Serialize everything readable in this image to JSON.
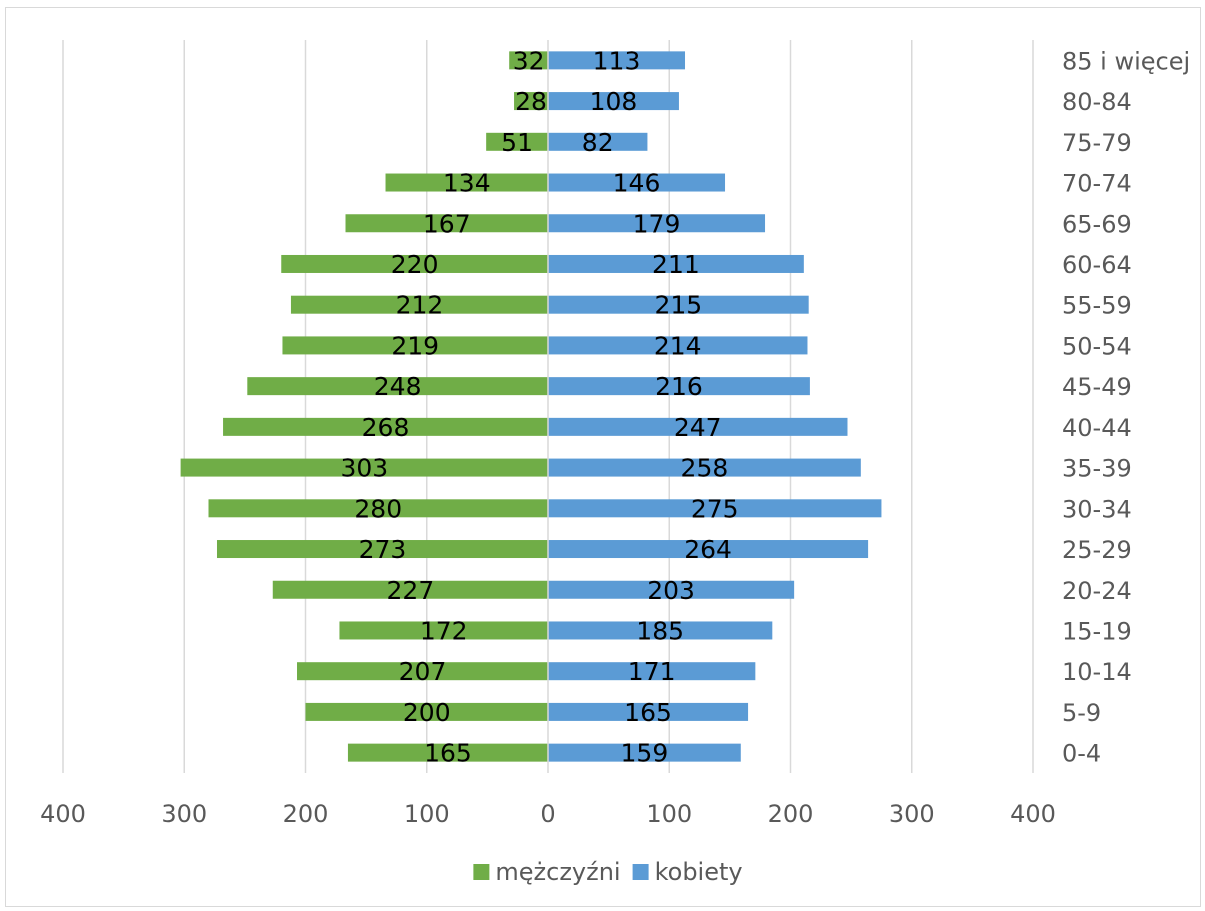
{
  "chart_data": {
    "type": "bar",
    "orientation": "horizontal",
    "categories": [
      "0-4",
      "5-9",
      "10-14",
      "15-19",
      "20-24",
      "25-29",
      "30-34",
      "35-39",
      "40-44",
      "45-49",
      "50-54",
      "55-59",
      "60-64",
      "65-69",
      "70-74",
      "75-79",
      "80-84",
      "85 i więcej"
    ],
    "series": [
      {
        "name": "mężczyźni",
        "direction": "left",
        "color": "#70ad47",
        "values": [
          165,
          200,
          207,
          172,
          227,
          273,
          280,
          303,
          268,
          248,
          219,
          212,
          220,
          167,
          134,
          51,
          28,
          32
        ]
      },
      {
        "name": "kobiety",
        "direction": "right",
        "color": "#5b9bd5",
        "values": [
          159,
          165,
          171,
          185,
          203,
          264,
          275,
          258,
          247,
          216,
          214,
          215,
          211,
          179,
          146,
          82,
          108,
          113
        ]
      }
    ],
    "xlim": [
      -400,
      400
    ],
    "x_tick_values": [
      -400,
      -300,
      -200,
      -100,
      0,
      100,
      200,
      300,
      400
    ],
    "x_tick_labels": [
      "400",
      "300",
      "200",
      "100",
      "0",
      "100",
      "200",
      "300",
      "400"
    ],
    "title": "",
    "xlabel": "",
    "ylabel": "",
    "grid": "vertical",
    "legend_position": "bottom",
    "category_labels_position": "right"
  }
}
